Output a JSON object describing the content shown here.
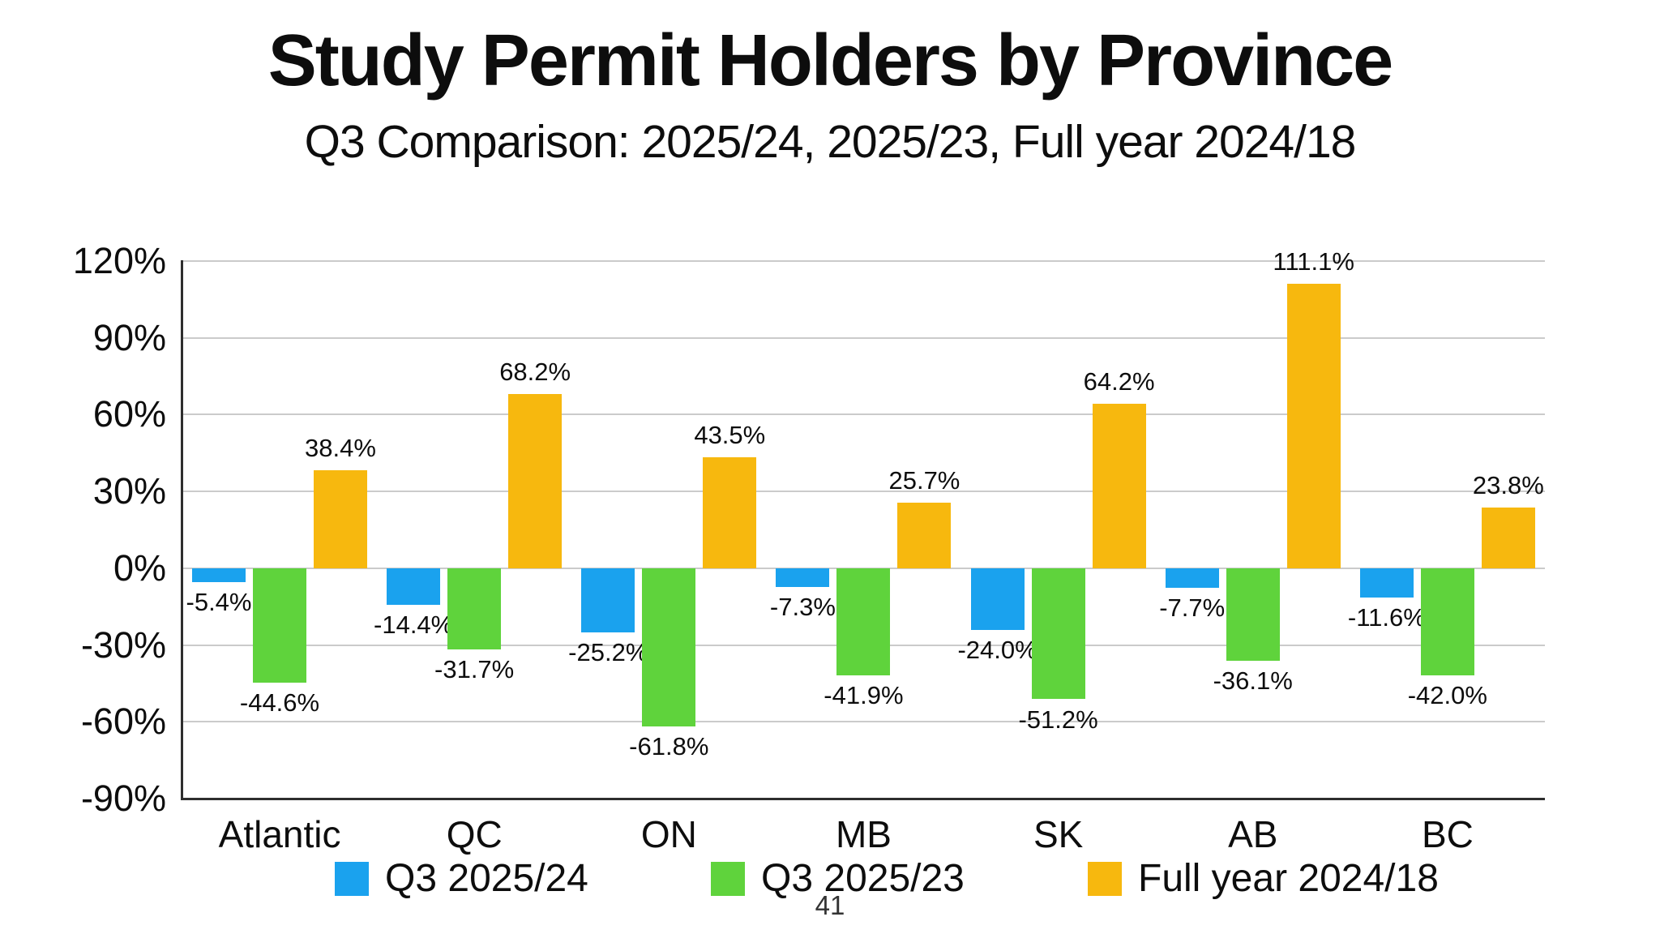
{
  "page": {
    "title": "Study Permit Holders by Province",
    "subtitle": "Q3 Comparison: 2025/24, 2025/23, Full year 2024/18",
    "page_number": "41"
  },
  "colors": {
    "series_blue": "#1AA2EE",
    "series_green": "#5FD33C",
    "series_orange": "#F7B80E",
    "gridline": "#cbcbcb",
    "axis_line": "#2e2e2e",
    "text": "#0d0d0d"
  },
  "chart_data": {
    "type": "bar",
    "title": "Study Permit Holders by Province",
    "subtitle": "Q3 Comparison: 2025/24, 2025/23, Full year 2024/18",
    "categories": [
      "Atlantic",
      "QC",
      "ON",
      "MB",
      "SK",
      "AB",
      "BC"
    ],
    "series": [
      {
        "name": "Q3 2025/24",
        "color_key": "series_blue",
        "values": [
          -5.4,
          -14.4,
          -25.2,
          -7.3,
          -24.0,
          -7.7,
          -11.6
        ],
        "labels": [
          "-5.4%",
          "-14.4%",
          "-25.2%",
          "-7.3%",
          "-24.0%",
          "-7.7%",
          "-11.6%"
        ]
      },
      {
        "name": "Q3 2025/23",
        "color_key": "series_green",
        "values": [
          -44.6,
          -31.7,
          -61.8,
          -41.9,
          -51.2,
          -36.1,
          -42.0
        ],
        "labels": [
          "-44.6%",
          "-31.7%",
          "-61.8%",
          "-41.9%",
          "-51.2%",
          "-36.1%",
          "-42.0%"
        ]
      },
      {
        "name": "Full year 2024/18",
        "color_key": "series_orange",
        "values": [
          38.4,
          68.2,
          43.5,
          25.7,
          64.2,
          111.1,
          23.8
        ],
        "labels": [
          "38.4%",
          "68.2%",
          "43.5%",
          "25.7%",
          "64.2%",
          "111.1%",
          "23.8%"
        ]
      }
    ],
    "ylim": [
      -90,
      120
    ],
    "yticks": [
      {
        "value": 120,
        "label": "120%"
      },
      {
        "value": 90,
        "label": "90%"
      },
      {
        "value": 60,
        "label": "60%"
      },
      {
        "value": 30,
        "label": "30%"
      },
      {
        "value": 0,
        "label": "0%"
      },
      {
        "value": -30,
        "label": "-30%"
      },
      {
        "value": -60,
        "label": "-60%"
      },
      {
        "value": -90,
        "label": "-90%"
      }
    ],
    "grid": true,
    "legend_position": "bottom"
  }
}
